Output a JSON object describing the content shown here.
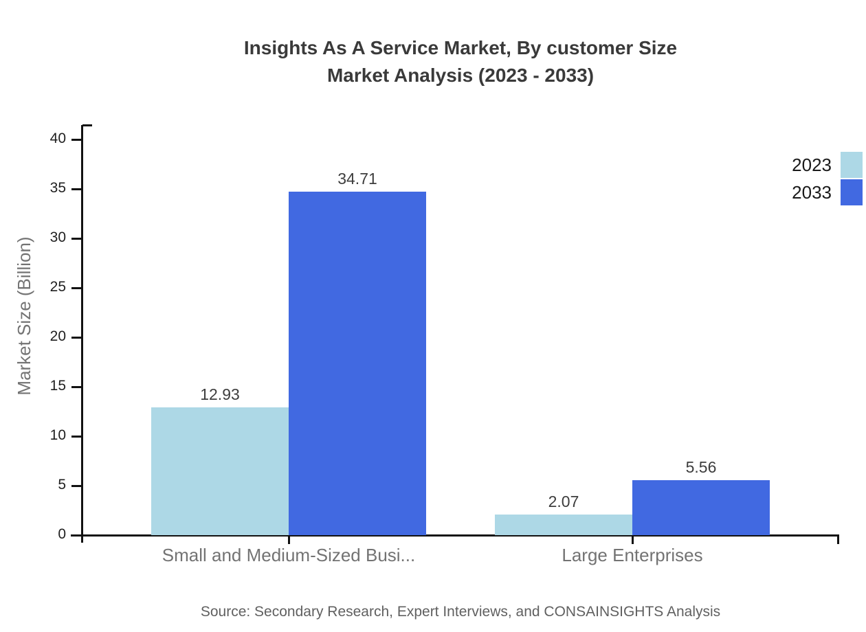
{
  "title": {
    "line1": "Insights As A Service Market, By customer Size",
    "line2": "Market Analysis (2023 - 2033)"
  },
  "y_axis_label": "Market Size (Billion)",
  "source": "Source: Secondary Research, Expert Interviews, and CONSAINSIGHTS Analysis",
  "legend": [
    {
      "label": "2023",
      "color": "#ADD8E6"
    },
    {
      "label": "2033",
      "color": "#4169E1"
    }
  ],
  "colors": {
    "series_2023": "#ADD8E6",
    "series_2033": "#4169E1",
    "axis": "#111111"
  },
  "chart_data": {
    "type": "bar",
    "title": "Insights As A Service Market, By customer Size Market Analysis (2023 - 2033)",
    "categories": [
      "Small and Medium-Sized Busi...",
      "Large Enterprises"
    ],
    "series": [
      {
        "name": "2023",
        "color": "#ADD8E6",
        "values": [
          12.93,
          2.07
        ]
      },
      {
        "name": "2033",
        "color": "#4169E1",
        "values": [
          34.71,
          5.56
        ]
      }
    ],
    "xlabel": "",
    "ylabel": "Market Size (Billion)",
    "ylim": [
      0,
      40
    ],
    "yticks": [
      0,
      5,
      10,
      15,
      20,
      25,
      30,
      35,
      40
    ],
    "grid": false,
    "legend_position": "top-right",
    "value_labels": true,
    "value_label_format": "0.00"
  }
}
